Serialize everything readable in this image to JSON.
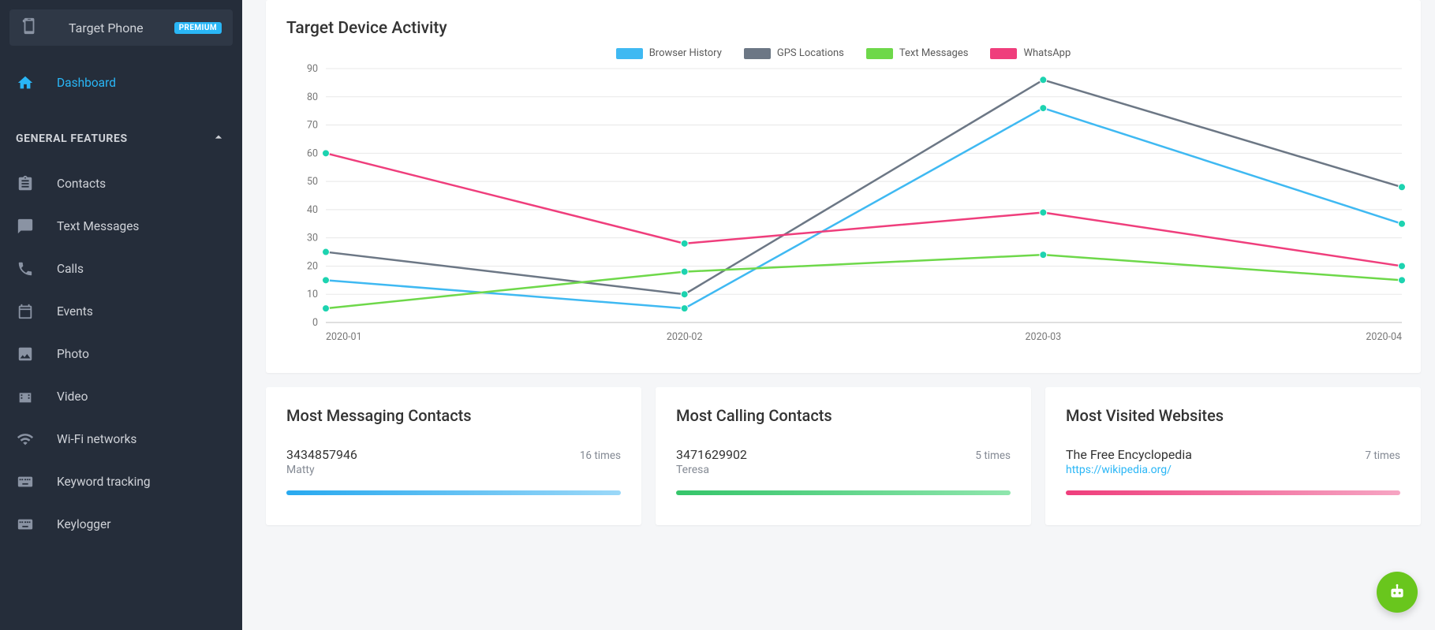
{
  "sidebar": {
    "target_label": "Target Phone",
    "target_badge": "PREMIUM",
    "dashboard_label": "Dashboard",
    "section_title": "GENERAL FEATURES",
    "items": [
      {
        "label": "Contacts",
        "icon": "clipboard"
      },
      {
        "label": "Text Messages",
        "icon": "chat"
      },
      {
        "label": "Calls",
        "icon": "phone"
      },
      {
        "label": "Events",
        "icon": "calendar"
      },
      {
        "label": "Photo",
        "icon": "image"
      },
      {
        "label": "Video",
        "icon": "film"
      },
      {
        "label": "Wi-Fi networks",
        "icon": "wifi"
      },
      {
        "label": "Keyword tracking",
        "icon": "keyboard"
      },
      {
        "label": "Keylogger",
        "icon": "keyboard"
      }
    ]
  },
  "chart": {
    "title": "Target Device Activity",
    "type": "line",
    "x_categories": [
      "2020-01",
      "2020-02",
      "2020-03",
      "2020-04"
    ],
    "ylim": [
      0,
      90
    ],
    "ytick_step": 10,
    "background_color": "#ffffff",
    "grid_color": "#e8e8e8",
    "axis_font_size": 12.5,
    "axis_font_color": "#777777",
    "line_width": 2.5,
    "marker_radius": 4.5,
    "marker_fill": "#1dd3b0",
    "series": [
      {
        "name": "Browser History",
        "color": "#3fb9f2",
        "type": "line",
        "values": [
          15,
          5,
          76,
          35
        ]
      },
      {
        "name": "GPS Locations",
        "color": "#6c7785",
        "type": "line",
        "values": [
          25,
          10,
          86,
          48
        ]
      },
      {
        "name": "Text Messages",
        "color": "#6ed84a",
        "type": "line",
        "values": [
          5,
          18,
          24,
          15
        ]
      },
      {
        "name": "WhatsApp",
        "color": "#ef3e7c",
        "type": "line",
        "values": [
          60,
          28,
          39,
          20
        ]
      }
    ],
    "legend_swatch_w": 34,
    "legend_swatch_h": 14
  },
  "panels": {
    "messaging": {
      "title": "Most Messaging Contacts",
      "bar_gradient": [
        "#28a9ef",
        "#9bd8f8"
      ],
      "rows": [
        {
          "primary": "3434857946",
          "secondary": "Matty",
          "count": "16 times",
          "bar_pct": 100
        }
      ]
    },
    "calling": {
      "title": "Most Calling Contacts",
      "bar_gradient": [
        "#35c56a",
        "#8fe6ad"
      ],
      "rows": [
        {
          "primary": "3471629902",
          "secondary": "Teresa",
          "count": "5 times",
          "bar_pct": 100
        }
      ]
    },
    "websites": {
      "title": "Most Visited Websites",
      "bar_gradient": [
        "#ef3e7c",
        "#f6a5c3"
      ],
      "rows": [
        {
          "primary": "The Free Encyclopedia",
          "secondary": "https://wikipedia.org/",
          "secondary_is_link": true,
          "count": "7 times",
          "bar_pct": 100
        }
      ]
    }
  },
  "fab": {
    "color": "#69c61d"
  }
}
